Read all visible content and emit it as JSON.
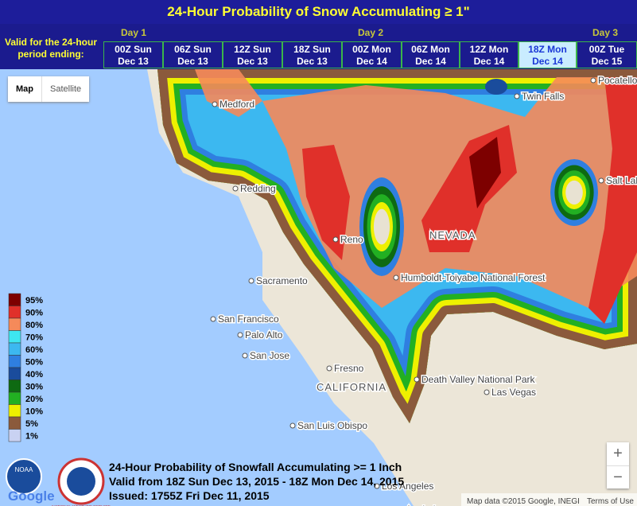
{
  "header": {
    "title": "24-Hour Probability of Snow Accumulating ≥ 1\"",
    "valid_label": "Valid for the 24-hour period ending:",
    "days": [
      "Day 1",
      "Day 2",
      "Day 3"
    ],
    "periods": [
      {
        "time": "00Z Sun",
        "date": "Dec 13"
      },
      {
        "time": "06Z Sun",
        "date": "Dec 13"
      },
      {
        "time": "12Z Sun",
        "date": "Dec 13"
      },
      {
        "time": "18Z Sun",
        "date": "Dec 13"
      },
      {
        "time": "00Z Mon",
        "date": "Dec 14"
      },
      {
        "time": "06Z Mon",
        "date": "Dec 14"
      },
      {
        "time": "12Z Mon",
        "date": "Dec 14"
      },
      {
        "time": "18Z Mon",
        "date": "Dec 14"
      },
      {
        "time": "00Z Tue",
        "date": "Dec 15"
      }
    ],
    "selected_period": 7
  },
  "map_controls": {
    "map": "Map",
    "satellite": "Satellite",
    "zoom_in": "+",
    "zoom_out": "−"
  },
  "legend": {
    "items": [
      {
        "label": "95%",
        "color": "#7d0000"
      },
      {
        "label": "90%",
        "color": "#e0302a"
      },
      {
        "label": "80%",
        "color": "#f58a5a"
      },
      {
        "label": "70%",
        "color": "#3ee6f0"
      },
      {
        "label": "60%",
        "color": "#3cb8f0"
      },
      {
        "label": "50%",
        "color": "#2f7fe0"
      },
      {
        "label": "40%",
        "color": "#1a4c9c"
      },
      {
        "label": "30%",
        "color": "#0e6a12"
      },
      {
        "label": "20%",
        "color": "#22b022"
      },
      {
        "label": "10%",
        "color": "#eef000"
      },
      {
        "label": "5%",
        "color": "#8b5a3c"
      },
      {
        "label": "1%",
        "color": "#c9d2f2"
      }
    ]
  },
  "places": [
    "Medford",
    "Twin Falls",
    "Pocatello",
    "Redding",
    "Salt Lak",
    "Reno",
    "NEVADA",
    "Humboldt-Toiyabe National Forest",
    "Sacramento",
    "San Francisco",
    "Palo Alto",
    "San Jose",
    "Fresno",
    "CALIFORNIA",
    "Death Valley National Park",
    "Las Vegas",
    "San Luis Obispo",
    "Anaheim",
    "Los Angeles"
  ],
  "footer": {
    "lines": [
      "24-Hour Probability of Snowfall Accumulating >= 1 Inch",
      "Valid from 18Z Sun Dec 13, 2015 - 18Z Mon Dec 14, 2015",
      "Issued: 1755Z Fri Dec 11, 2015"
    ],
    "attribution": "Map data ©2015 Google, INEGI",
    "terms": "Terms of Use",
    "google": "Google",
    "noaa": "NOAA",
    "nws": "NATIONAL WEATHER SERVICE"
  }
}
